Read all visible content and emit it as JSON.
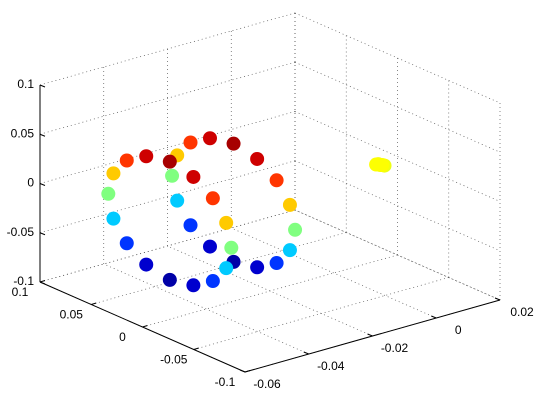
{
  "chart_data": {
    "type": "scatter3d",
    "x": [
      -0.045,
      -0.045,
      -0.045,
      -0.045,
      -0.045,
      -0.045,
      -0.045,
      -0.045,
      -0.045,
      -0.045,
      -0.045,
      -0.045,
      -0.045,
      -0.045,
      -0.045,
      -0.045,
      -0.025,
      -0.025,
      -0.025,
      -0.025,
      -0.025,
      -0.025,
      -0.025,
      -0.025,
      -0.025,
      -0.025,
      -0.025,
      -0.025,
      -0.025,
      -0.025,
      -0.025,
      -0.025,
      0.013,
      0.012,
      0.014,
      0.013,
      0.013
    ],
    "y": [
      0.08,
      0.075,
      0.062,
      0.043,
      0.02,
      -0.003,
      -0.022,
      -0.035,
      -0.04,
      -0.035,
      -0.022,
      -0.003,
      0.02,
      0.043,
      0.062,
      0.075,
      0.08,
      0.075,
      0.062,
      0.043,
      0.02,
      -0.003,
      -0.022,
      -0.035,
      -0.04,
      -0.035,
      -0.022,
      -0.003,
      0.02,
      0.043,
      0.062,
      0.075,
      -0.005,
      -0.004,
      -0.006,
      -0.003,
      -0.007
    ],
    "z": [
      -0.015,
      0.008,
      0.027,
      0.04,
      0.045,
      0.04,
      0.027,
      0.008,
      -0.015,
      -0.038,
      -0.057,
      -0.07,
      -0.075,
      -0.07,
      -0.057,
      -0.038,
      -0.015,
      0.008,
      0.027,
      0.04,
      0.045,
      0.04,
      0.027,
      0.008,
      -0.015,
      -0.038,
      -0.057,
      -0.07,
      -0.075,
      -0.07,
      -0.057,
      -0.038,
      0.0,
      0.001,
      -0.001,
      0.0,
      0.001
    ],
    "colormap": "jet",
    "clim": [
      -0.08,
      0.05
    ],
    "xlim": [
      -0.06,
      0.02
    ],
    "xticks": [
      -0.06,
      -0.04,
      -0.02,
      0,
      0.02
    ],
    "ylim": [
      -0.1,
      0.1
    ],
    "yticks": [
      -0.1,
      -0.05,
      0,
      0.05,
      0.1
    ],
    "zlim": [
      -0.1,
      0.1
    ],
    "zticks": [
      -0.1,
      -0.05,
      0,
      0.05,
      0.1
    ],
    "grid": true
  }
}
